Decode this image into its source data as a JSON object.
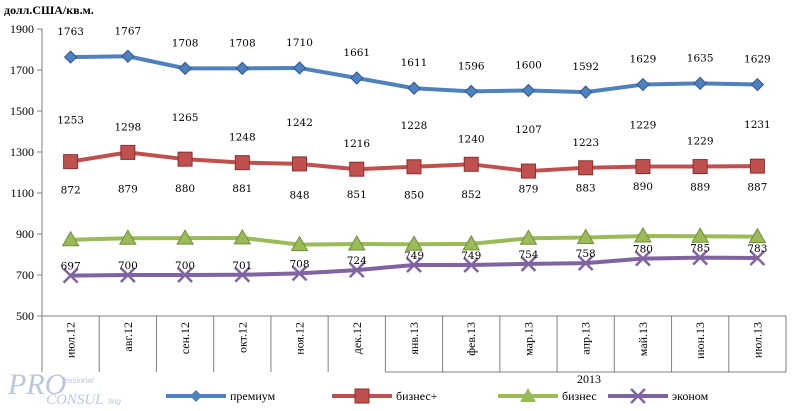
{
  "watermark": {
    "brand": "PRO",
    "brand2": "CONSUL",
    "small1": "fessional",
    "small2": "ting"
  },
  "chart_data": {
    "type": "line",
    "ylabel": "долл.США/кв.м.",
    "ylim": [
      500,
      1900
    ],
    "yticks": [
      500,
      700,
      900,
      1100,
      1300,
      1500,
      1700,
      1900
    ],
    "categories": [
      "июл.12",
      "авг.12",
      "сен.12",
      "окт.12",
      "ноя.12",
      "дек.12",
      "янв.13",
      "фев.13",
      "мар.13",
      "апр.13",
      "май.13",
      "июн.13",
      "июл.13"
    ],
    "group_label": "2013",
    "grid": false,
    "legend_position": "bottom",
    "series": [
      {
        "name": "премиум",
        "color": "#4f81bd",
        "marker": "diamond",
        "values": [
          1763,
          1767,
          1708,
          1708,
          1710,
          1661,
          1611,
          1596,
          1600,
          1592,
          1629,
          1635,
          1629
        ]
      },
      {
        "name": "бизнес+",
        "color": "#c0504d",
        "marker": "square",
        "values": [
          1253,
          1298,
          1265,
          1248,
          1242,
          1216,
          1228,
          1240,
          1207,
          1223,
          1229,
          1229,
          1231
        ]
      },
      {
        "name": "бизнес",
        "color": "#9bbb59",
        "marker": "triangle",
        "values": [
          872,
          879,
          880,
          881,
          848,
          851,
          850,
          852,
          879,
          883,
          890,
          889,
          887
        ]
      },
      {
        "name": "эконом",
        "color": "#8064a2",
        "marker": "x",
        "values": [
          697,
          700,
          700,
          701,
          708,
          724,
          749,
          749,
          754,
          758,
          780,
          785,
          783
        ]
      }
    ]
  }
}
